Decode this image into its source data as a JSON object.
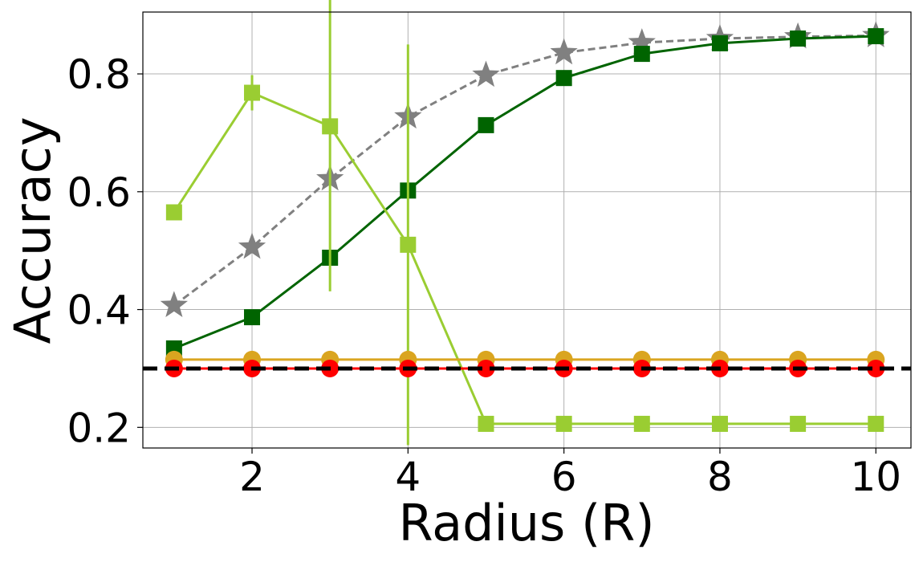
{
  "chart_data": {
    "type": "line",
    "xlabel": "Radius (R)",
    "ylabel": "Accuracy",
    "xlim": [
      0.6,
      10.45
    ],
    "ylim": [
      0.165,
      0.905
    ],
    "xticks": [
      2,
      4,
      6,
      8,
      10
    ],
    "yticks": [
      0.2,
      0.4,
      0.6,
      0.8
    ],
    "xtick_labels": [
      "2",
      "4",
      "6",
      "8",
      "10"
    ],
    "ytick_labels": [
      "0.2",
      "0.4",
      "0.6",
      "0.8"
    ],
    "grid": true,
    "baseline": {
      "y": 0.3,
      "color": "#000000",
      "style": "dashed"
    },
    "x": [
      1,
      2,
      3,
      4,
      5,
      6,
      7,
      8,
      9,
      10
    ],
    "series": [
      {
        "color": "#808080",
        "marker": "star",
        "dashed": true,
        "values": [
          0.407,
          0.506,
          0.622,
          0.727,
          0.798,
          0.836,
          0.853,
          0.86,
          0.863,
          0.865
        ]
      },
      {
        "color": "#006400",
        "marker": "square",
        "dashed": false,
        "values": [
          0.334,
          0.387,
          0.488,
          0.602,
          0.713,
          0.793,
          0.834,
          0.852,
          0.86,
          0.864
        ]
      },
      {
        "color": "#9ACD32",
        "marker": "square",
        "dashed": false,
        "values": [
          0.565,
          0.768,
          0.711,
          0.51,
          0.206,
          0.206,
          0.206,
          0.206,
          0.206,
          0.206
        ],
        "errors": [
          0,
          0.03,
          0.28,
          0.34,
          0,
          0,
          0,
          0,
          0,
          0
        ]
      },
      {
        "color": "#DAA520",
        "marker": "circle",
        "dashed": false,
        "values": [
          0.315,
          0.315,
          0.315,
          0.315,
          0.315,
          0.315,
          0.315,
          0.315,
          0.315,
          0.315
        ]
      },
      {
        "color": "#FF0000",
        "marker": "circle",
        "dashed": false,
        "values": [
          0.3,
          0.3,
          0.3,
          0.3,
          0.3,
          0.3,
          0.3,
          0.3,
          0.3,
          0.3
        ]
      }
    ]
  }
}
